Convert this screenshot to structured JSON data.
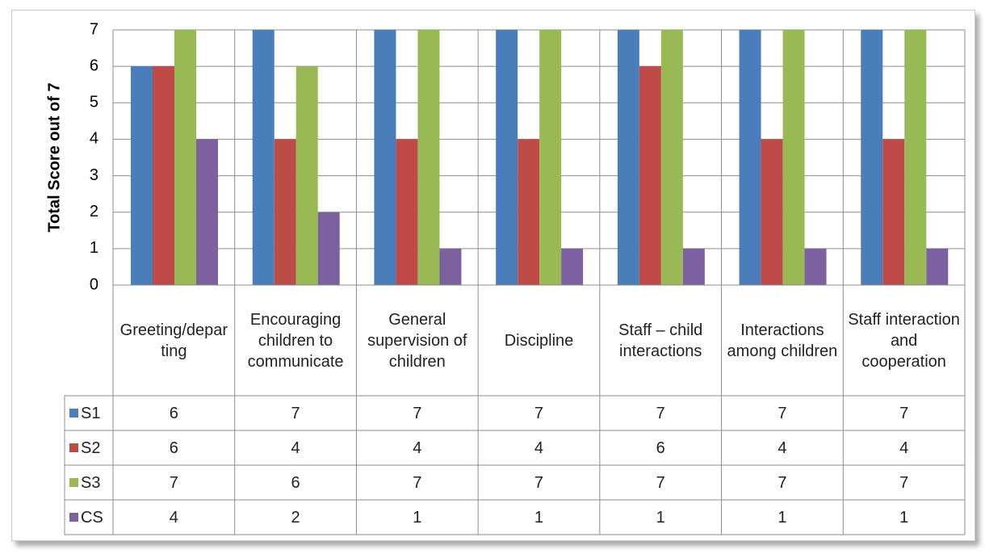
{
  "chart_data": {
    "type": "bar",
    "y_label": "Total Score out of 7",
    "categories": [
      "Greeting/departing",
      "Encouraging children to communicate",
      "General supervision of children",
      "Discipline",
      "Staff – child interactions",
      "Interactions among children",
      "Staff interaction and cooperation"
    ],
    "series": [
      {
        "name": "S1",
        "color": "#4a7ebb",
        "values": [
          6,
          7,
          7,
          7,
          7,
          7,
          7
        ]
      },
      {
        "name": "S2",
        "color": "#be4b48",
        "values": [
          6,
          4,
          4,
          4,
          6,
          4,
          4
        ]
      },
      {
        "name": "S3",
        "color": "#98b954",
        "values": [
          7,
          6,
          7,
          7,
          7,
          7,
          7
        ]
      },
      {
        "name": "CS",
        "color": "#7d60a0",
        "values": [
          4,
          2,
          1,
          1,
          1,
          1,
          1
        ]
      }
    ],
    "ylim": [
      0,
      7
    ],
    "yticks": [
      0,
      1,
      2,
      3,
      4,
      5,
      6,
      7
    ],
    "grid": true
  }
}
